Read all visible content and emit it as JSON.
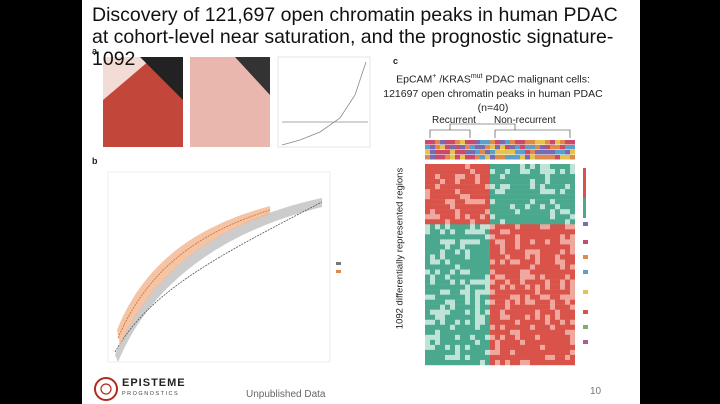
{
  "header": {
    "title": "Discovery of 121,697 open chromatin peaks in human PDAC at cohort-level near saturation, and the prognostic signature-1092"
  },
  "panels": {
    "a": {
      "label": "a"
    },
    "b": {
      "label": "b"
    },
    "c": {
      "label": "c",
      "caption": {
        "part1": "EpCAM",
        "sup1": "+",
        "part2": "/KRAS",
        "sup2": "mut",
        "part3": "PDAC malignant cells: 121697 open chromatin peaks in human PDAC (n=40)"
      },
      "group_labels": [
        "Recurrent",
        "Non-recurrent"
      ],
      "y_label": "1092 differentially represented regions"
    }
  },
  "footer": {
    "logo_name": "EPISTEME",
    "logo_sub": "PROGNOSTICS",
    "note": "Unpublished Data",
    "page_number": "10"
  }
}
